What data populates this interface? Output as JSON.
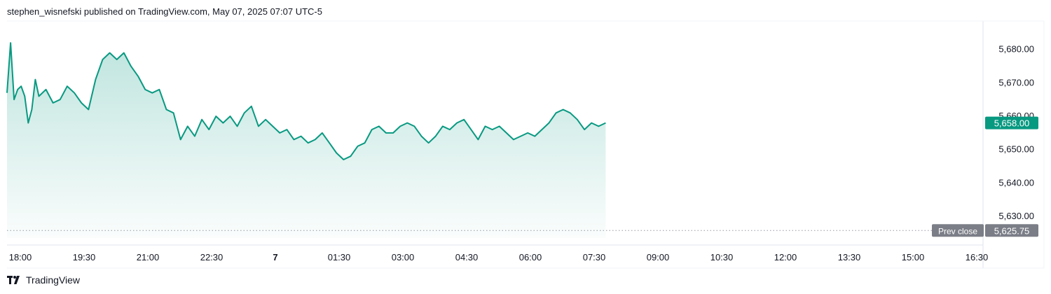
{
  "header": {
    "title": "stephen_wisnefski published on TradingView.com, May 07, 2025 07:07 UTC-5"
  },
  "footer": {
    "brand": "TradingView"
  },
  "colors": {
    "line": "#089981",
    "area_top": "#089981",
    "last_price_badge": "#089981",
    "prev_close_badge": "#7b7e87",
    "prev_close_line": "#9598a1",
    "axis_text": "#131722"
  },
  "chart_data": {
    "type": "area",
    "x_ticks": [
      "18:00",
      "19:30",
      "21:00",
      "22:30",
      "7",
      "01:30",
      "03:00",
      "04:30",
      "06:00",
      "07:30",
      "09:00",
      "10:30",
      "12:00",
      "13:30",
      "15:00",
      "16:30"
    ],
    "y_ticks": [
      "5,680.00",
      "5,670.00",
      "5,660.00",
      "5,650.00",
      "5,640.00",
      "5,630.00"
    ],
    "ylim": [
      5623.5,
      5687.5
    ],
    "xlim": [
      "17:55",
      "17:20"
    ],
    "session_start": "18:00",
    "series": [
      {
        "x": [
          "17:55",
          "18:00",
          "18:05",
          "18:10",
          "18:15",
          "18:20",
          "18:25",
          "18:30",
          "18:35",
          "18:40",
          "18:50",
          "19:00",
          "19:10",
          "19:20",
          "19:30",
          "19:40",
          "19:50",
          "20:00",
          "20:10",
          "20:20",
          "20:30",
          "20:40",
          "20:50",
          "21:00",
          "21:10",
          "21:20",
          "21:30",
          "21:40",
          "21:50",
          "22:00",
          "22:10",
          "22:20",
          "22:30",
          "22:40",
          "22:50",
          "23:00",
          "23:10",
          "23:20",
          "23:30",
          "23:40",
          "23:50",
          "00:00",
          "00:10",
          "00:20",
          "00:30",
          "00:40",
          "00:50",
          "01:00",
          "01:10",
          "01:20",
          "01:30",
          "01:40",
          "01:50",
          "02:00",
          "02:10",
          "02:20",
          "02:30",
          "02:40",
          "02:50",
          "03:00",
          "03:10",
          "03:20",
          "03:30",
          "03:40",
          "03:50",
          "04:00",
          "04:10",
          "04:20",
          "04:30",
          "04:40",
          "04:50",
          "05:00",
          "05:10",
          "05:20",
          "05:30",
          "05:40",
          "05:50",
          "06:00",
          "06:10",
          "06:20",
          "06:30",
          "06:40",
          "06:50",
          "07:00",
          "07:10",
          "07:20",
          "07:30",
          "07:40",
          "07:50",
          "08:00"
        ],
        "y": [
          5667,
          5682,
          5665,
          5668,
          5669,
          5666,
          5658,
          5662,
          5671,
          5666,
          5668,
          5664,
          5665,
          5669,
          5667,
          5664,
          5662,
          5671,
          5677,
          5679,
          5677,
          5679,
          5675,
          5672,
          5668,
          5667,
          5668,
          5662,
          5661,
          5653,
          5657,
          5654,
          5659,
          5656,
          5660,
          5658,
          5660,
          5657,
          5661,
          5663,
          5657,
          5659,
          5657,
          5655,
          5656,
          5653,
          5654,
          5652,
          5653,
          5655,
          5652,
          5649,
          5647,
          5648,
          5651,
          5652,
          5656,
          5657,
          5655,
          5655,
          5657,
          5658,
          5657,
          5654,
          5652,
          5654,
          5657,
          5656,
          5658,
          5659,
          5656,
          5653,
          5657,
          5656,
          5657,
          5655,
          5653,
          5654,
          5655,
          5654,
          5656,
          5658,
          5661,
          5662,
          5661,
          5659,
          5656,
          5658,
          5657,
          5658
        ]
      }
    ],
    "last_price": 5658.0,
    "last_price_label": "5,658.00",
    "prev_close": 5625.75,
    "prev_close_label": "Prev close",
    "prev_close_value_label": "5,625.75",
    "grid": false,
    "legend": "none"
  }
}
